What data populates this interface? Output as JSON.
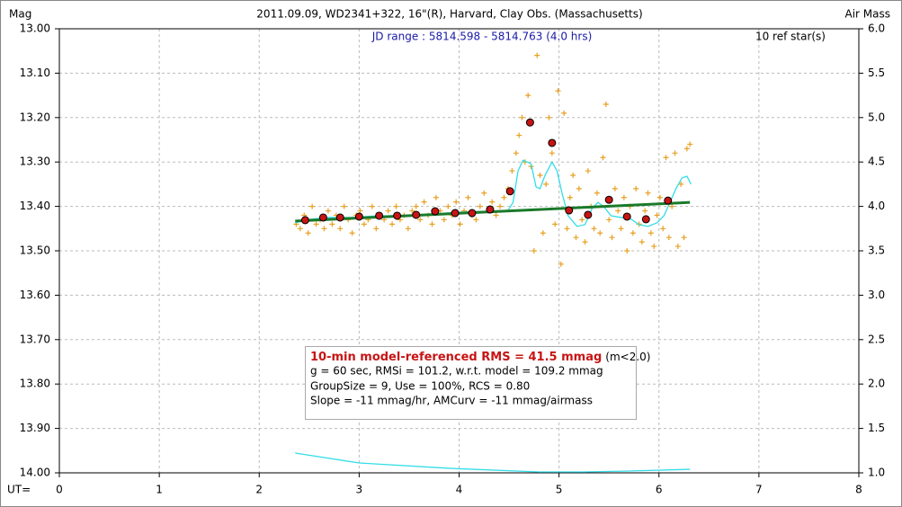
{
  "chart_data": {
    "type": "scatter",
    "title": "2011.09.09, WD2341+322, 16\"(R), Harvard, Clay Obs. (Massachusetts)",
    "y_label": "Mag",
    "y2_label": "Air Mass",
    "x_label": "UT=",
    "annotations": {
      "jd_range": "JD range : 5814.598 - 5814.763 (4.0 hrs)",
      "ref_stars": "10 ref star(s)",
      "rms": "10-min model-referenced RMS = 41.5 mmag",
      "rms_note": "(m<2.0)",
      "line2": "g = 60 sec, RMSi = 101.2, w.r.t. model = 109.2 mmag",
      "line3": "GroupSize = 9, Use = 100%, RCS = 0.80",
      "line4": "Slope = -11 mmag/hr, AMCurv = -11 mmag/airmass"
    },
    "xlim": [
      0,
      8
    ],
    "xticks": [
      0,
      1,
      2,
      3,
      4,
      5,
      6,
      7,
      8
    ],
    "ylim": [
      13,
      14
    ],
    "y_inverted": true,
    "yticks": [
      {
        "value": 13,
        "label": "13.00"
      },
      {
        "value": 13.1,
        "label": "13.10"
      },
      {
        "value": 13.2,
        "label": "13.20"
      },
      {
        "value": 13.3,
        "label": "13.30"
      },
      {
        "value": 13.4,
        "label": "13.40"
      },
      {
        "value": 13.5,
        "label": "13.50"
      },
      {
        "value": 13.6,
        "label": "13.60"
      },
      {
        "value": 13.7,
        "label": "13.70"
      },
      {
        "value": 13.8,
        "label": "13.80"
      },
      {
        "value": 13.9,
        "label": "13.90"
      },
      {
        "value": 14,
        "label": "14.00"
      }
    ],
    "y2lim": [
      1,
      6
    ],
    "y2ticks": [
      {
        "value": 1,
        "label": "1.0"
      },
      1.5,
      {
        "value": 2,
        "label": "2.0"
      },
      2.5,
      {
        "value": 3,
        "label": "3.0"
      },
      3.5,
      {
        "value": 4,
        "label": "4.0"
      },
      4.5,
      {
        "value": 5,
        "label": "5.0"
      },
      5.5,
      {
        "value": 6,
        "label": "6.0"
      }
    ],
    "grid": true,
    "series": [
      {
        "marker": "plus",
        "color": "#e8a020",
        "x": [
          2.37,
          2.41,
          2.45,
          2.49,
          2.53,
          2.57,
          2.61,
          2.65,
          2.69,
          2.73,
          2.77,
          2.81,
          2.85,
          2.89,
          2.93,
          2.97,
          3.01,
          3.05,
          3.09,
          3.13,
          3.17,
          3.21,
          3.25,
          3.29,
          3.33,
          3.37,
          3.41,
          3.45,
          3.49,
          3.53,
          3.57,
          3.61,
          3.65,
          3.69,
          3.73,
          3.77,
          3.81,
          3.85,
          3.89,
          3.93,
          3.97,
          4.01,
          4.05,
          4.09,
          4.13,
          4.17,
          4.21,
          4.25,
          4.29,
          4.33,
          4.37,
          4.41,
          4.45,
          4.49,
          4.53,
          4.57,
          4.6,
          4.63,
          4.66,
          4.69,
          4.72,
          4.75,
          4.78,
          4.81,
          4.84,
          4.87,
          4.9,
          4.93,
          4.96,
          4.99,
          5.02,
          5.05,
          5.08,
          5.11,
          5.14,
          5.17,
          5.2,
          5.23,
          5.26,
          5.29,
          5.32,
          5.35,
          5.38,
          5.41,
          5.44,
          5.47,
          5.5,
          5.53,
          5.56,
          5.59,
          5.62,
          5.65,
          5.68,
          5.71,
          5.74,
          5.77,
          5.8,
          5.83,
          5.86,
          5.89,
          5.92,
          5.95,
          5.98,
          6.01,
          6.04,
          6.07,
          6.1,
          6.13,
          6.16,
          6.19,
          6.22,
          6.25,
          6.28,
          6.31
        ],
        "values": [
          13.44,
          13.45,
          13.42,
          13.46,
          13.4,
          13.44,
          13.43,
          13.45,
          13.41,
          13.44,
          13.42,
          13.45,
          13.4,
          13.43,
          13.46,
          13.42,
          13.41,
          13.44,
          13.43,
          13.4,
          13.45,
          13.42,
          13.43,
          13.41,
          13.44,
          13.4,
          13.43,
          13.42,
          13.45,
          13.41,
          13.4,
          13.43,
          13.39,
          13.42,
          13.44,
          13.38,
          13.41,
          13.43,
          13.4,
          13.42,
          13.39,
          13.44,
          13.41,
          13.38,
          13.42,
          13.43,
          13.4,
          13.37,
          13.41,
          13.39,
          13.42,
          13.4,
          13.38,
          13.36,
          13.32,
          13.28,
          13.24,
          13.2,
          13.3,
          13.15,
          13.31,
          13.5,
          13.06,
          13.33,
          13.46,
          13.35,
          13.2,
          13.28,
          13.44,
          13.14,
          13.53,
          13.19,
          13.45,
          13.38,
          13.33,
          13.47,
          13.36,
          13.43,
          13.48,
          13.32,
          13.4,
          13.45,
          13.37,
          13.46,
          13.29,
          13.17,
          13.43,
          13.47,
          13.36,
          13.41,
          13.45,
          13.38,
          13.5,
          13.4,
          13.46,
          13.36,
          13.44,
          13.48,
          13.41,
          13.37,
          13.46,
          13.49,
          13.42,
          13.38,
          13.45,
          13.29,
          13.47,
          13.4,
          13.28,
          13.49,
          13.35,
          13.47,
          13.27,
          13.26
        ]
      },
      {
        "marker": "line",
        "color": "#33dde8",
        "x": [
          2.36,
          2.51,
          2.69,
          2.92,
          3.19,
          3.46,
          3.73,
          4.0,
          4.27,
          4.49,
          4.54,
          4.59,
          4.64,
          4.72,
          4.77,
          4.81,
          4.86,
          4.93,
          4.98,
          5.03,
          5.09,
          5.18,
          5.26,
          5.33,
          5.39,
          5.45,
          5.52,
          5.62,
          5.71,
          5.8,
          5.89,
          5.98,
          6.05,
          6.11,
          6.17,
          6.23,
          6.28,
          6.32
        ],
        "values": [
          13.437,
          13.429,
          13.425,
          13.425,
          13.421,
          13.421,
          13.417,
          13.413,
          13.411,
          13.409,
          13.391,
          13.32,
          13.296,
          13.304,
          13.356,
          13.36,
          13.33,
          13.3,
          13.32,
          13.37,
          13.421,
          13.445,
          13.441,
          13.405,
          13.391,
          13.401,
          13.421,
          13.425,
          13.427,
          13.441,
          13.445,
          13.437,
          13.421,
          13.391,
          13.36,
          13.336,
          13.332,
          13.35
        ]
      },
      {
        "marker": "line",
        "color": "#1a7a2a",
        "width": 3,
        "x": [
          2.36,
          6.31
        ],
        "values": [
          13.433,
          13.391
        ]
      },
      {
        "marker": "circle",
        "color": "#c81414",
        "x": [
          2.46,
          2.64,
          2.81,
          3.0,
          3.2,
          3.38,
          3.57,
          3.76,
          3.96,
          4.13,
          4.31,
          4.51,
          4.71,
          4.93,
          5.1,
          5.29,
          5.5,
          5.68,
          5.87,
          6.09
        ],
        "values": [
          13.431,
          13.425,
          13.425,
          13.423,
          13.421,
          13.421,
          13.419,
          13.411,
          13.415,
          13.415,
          13.407,
          13.366,
          13.211,
          13.257,
          13.409,
          13.419,
          13.385,
          13.423,
          13.429,
          13.387
        ]
      },
      {
        "marker": "line",
        "color": "#33dde8",
        "axis": "y2",
        "x": [
          2.36,
          3.0,
          3.9,
          4.8,
          5.25,
          5.7,
          6.31
        ],
        "values": [
          1.223,
          1.111,
          1.051,
          1.01,
          1.01,
          1.02,
          1.04
        ]
      }
    ]
  }
}
